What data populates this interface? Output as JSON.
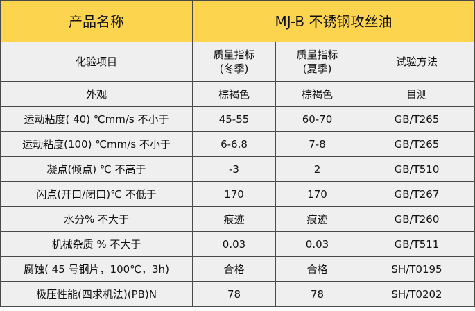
{
  "header": {
    "name_label": "产品名称",
    "product_name": "MJ-B 不锈钢攻丝油"
  },
  "columns": {
    "item": "化验项目",
    "winter": [
      "质量指标",
      "(冬季)"
    ],
    "summer": [
      "质量指标",
      "(夏季)"
    ],
    "method": "试验方法"
  },
  "rows": [
    {
      "item": "外观",
      "winter": "棕褐色",
      "summer": "棕褐色",
      "method": "目测"
    },
    {
      "item": "运动粘度( 40) ℃mm/s 不小于",
      "winter": "45-55",
      "summer": "60-70",
      "method": "GB/T265"
    },
    {
      "item": "运动粘度(100) ℃mm/s 不小于",
      "winter": "6-6.8",
      "summer": "7-8",
      "method": "GB/T265"
    },
    {
      "item": "凝点(倾点) ℃  不高于",
      "winter": "-3",
      "summer": "2",
      "method": "GB/T510"
    },
    {
      "item": "闪点(开口/闭口)℃ 不低于",
      "winter": "170",
      "summer": "170",
      "method": "GB/T267"
    },
    {
      "item": "水分% 不大于",
      "winter": "痕迹",
      "summer": "痕迹",
      "method": "GB/T260"
    },
    {
      "item": "机械杂质 %  不大于",
      "winter": "0.03",
      "summer": "0.03",
      "method": "GB/T511"
    },
    {
      "item": "腐蚀( 45 号钢片，100℃，3h)",
      "winter": "合格",
      "summer": "合格",
      "method": "SH/T0195"
    },
    {
      "item": "极压性能(四求机法)(PB)N",
      "winter": "78",
      "summer": "78",
      "method": "SH/T0202"
    }
  ],
  "colors": {
    "header_bg": "#fdd44e",
    "cell_bg": "#efefef",
    "border": "#4a4a4a"
  }
}
